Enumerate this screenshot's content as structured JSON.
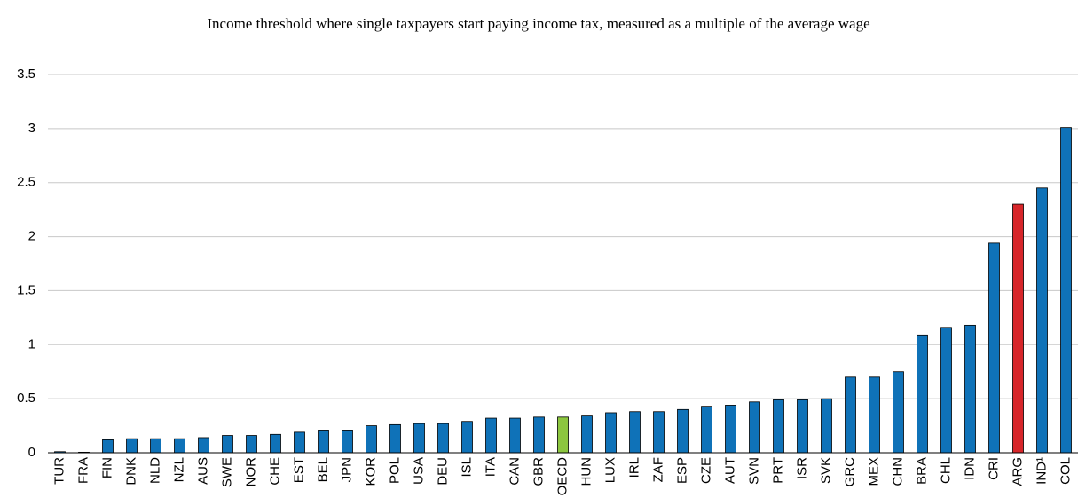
{
  "chart_data": {
    "type": "bar",
    "title": "Income threshold where single taxpayers start paying income tax, measured as a multiple of the average wage",
    "categories": [
      "TUR",
      "FRA",
      "FIN",
      "DNK",
      "NLD",
      "NZL",
      "AUS",
      "SWE",
      "NOR",
      "CHE",
      "EST",
      "BEL",
      "JPN",
      "KOR",
      "POL",
      "USA",
      "DEU",
      "ISL",
      "ITA",
      "CAN",
      "GBR",
      "OECD",
      "HUN",
      "LUX",
      "IRL",
      "ZAF",
      "ESP",
      "CZE",
      "AUT",
      "SVN",
      "PRT",
      "ISR",
      "SVK",
      "GRC",
      "MEX",
      "CHN",
      "BRA",
      "CHL",
      "IDN",
      "CRI",
      "ARG",
      "IND¹",
      "COL"
    ],
    "values": [
      0.01,
      0.005,
      0.12,
      0.13,
      0.13,
      0.13,
      0.14,
      0.16,
      0.16,
      0.17,
      0.19,
      0.21,
      0.21,
      0.25,
      0.26,
      0.27,
      0.27,
      0.29,
      0.32,
      0.32,
      0.33,
      0.33,
      0.34,
      0.37,
      0.38,
      0.38,
      0.4,
      0.43,
      0.44,
      0.47,
      0.49,
      0.49,
      0.5,
      0.7,
      0.7,
      0.75,
      1.09,
      1.16,
      1.18,
      1.94,
      2.3,
      2.45,
      3.01
    ],
    "colors": [
      "#0f72b8",
      "#0f72b8",
      "#0f72b8",
      "#0f72b8",
      "#0f72b8",
      "#0f72b8",
      "#0f72b8",
      "#0f72b8",
      "#0f72b8",
      "#0f72b8",
      "#0f72b8",
      "#0f72b8",
      "#0f72b8",
      "#0f72b8",
      "#0f72b8",
      "#0f72b8",
      "#0f72b8",
      "#0f72b8",
      "#0f72b8",
      "#0f72b8",
      "#0f72b8",
      "#8cc63f",
      "#0f72b8",
      "#0f72b8",
      "#0f72b8",
      "#0f72b8",
      "#0f72b8",
      "#0f72b8",
      "#0f72b8",
      "#0f72b8",
      "#0f72b8",
      "#0f72b8",
      "#0f72b8",
      "#0f72b8",
      "#0f72b8",
      "#0f72b8",
      "#0f72b8",
      "#0f72b8",
      "#0f72b8",
      "#0f72b8",
      "#d7262a",
      "#0f72b8",
      "#0f72b8"
    ],
    "ylim": [
      0,
      3.5
    ],
    "yticks": [
      0,
      0.5,
      1,
      1.5,
      2,
      2.5,
      3,
      3.5
    ],
    "grid": true
  }
}
